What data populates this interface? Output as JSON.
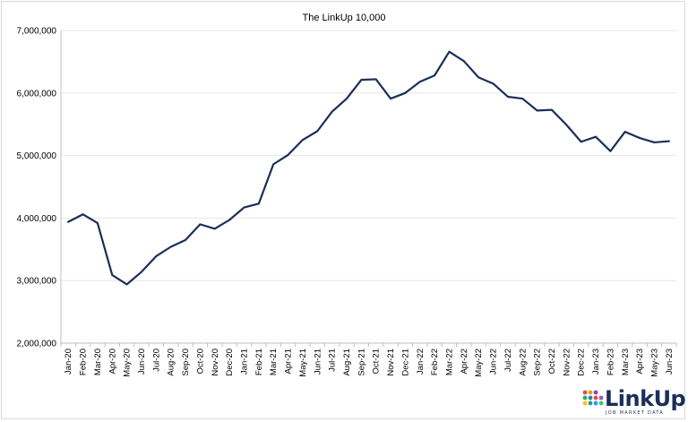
{
  "chart_data": {
    "type": "line",
    "title": "The LinkUp 10,000",
    "xlabel": "",
    "ylabel": "",
    "ylim": [
      2000000,
      7000000
    ],
    "yticks": [
      2000000,
      3000000,
      4000000,
      5000000,
      6000000,
      7000000
    ],
    "ytick_labels": [
      "2,000,000",
      "3,000,000",
      "4,000,000",
      "5,000,000",
      "6,000,000",
      "7,000,000"
    ],
    "grid": true,
    "legend": "none",
    "categories": [
      "Jan-20",
      "Feb-20",
      "Mar-20",
      "Apr-20",
      "May-20",
      "Jun-20",
      "Jul-20",
      "Aug-20",
      "Sep-20",
      "Oct-20",
      "Nov-20",
      "Dec-20",
      "Jan-21",
      "Feb-21",
      "Mar-21",
      "Apr-21",
      "May-21",
      "Jun-21",
      "Jul-21",
      "Aug-21",
      "Sep-21",
      "Oct-21",
      "Nov-21",
      "Dec-21",
      "Jan-22",
      "Feb-22",
      "Mar-22",
      "Apr-22",
      "May-22",
      "Jun-22",
      "Jul-22",
      "Aug-22",
      "Sep-22",
      "Oct-22",
      "Nov-22",
      "Dec-22",
      "Jan-23",
      "Feb-23",
      "Mar-23",
      "Apr-23",
      "May-23",
      "Jun-23"
    ],
    "series": [
      {
        "values": [
          3940000,
          4060000,
          3920000,
          3090000,
          2940000,
          3140000,
          3390000,
          3540000,
          3650000,
          3900000,
          3830000,
          3970000,
          4170000,
          4230000,
          4860000,
          5010000,
          5250000,
          5390000,
          5700000,
          5910000,
          6210000,
          6220000,
          5910000,
          6000000,
          6180000,
          6280000,
          6660000,
          6510000,
          6250000,
          6150000,
          5940000,
          5910000,
          5720000,
          5730000,
          5490000,
          5220000,
          5300000,
          5070000,
          5380000,
          5280000,
          5210000,
          5230000
        ],
        "color": "#1b2f57"
      }
    ]
  },
  "logo": {
    "word": "LinkUp",
    "tagline": "JOB MARKET DATA"
  },
  "colors": {
    "line": "#1b2f57",
    "grid": "#e6e6e6",
    "axis": "#bfbfbf",
    "text": "#000000"
  }
}
